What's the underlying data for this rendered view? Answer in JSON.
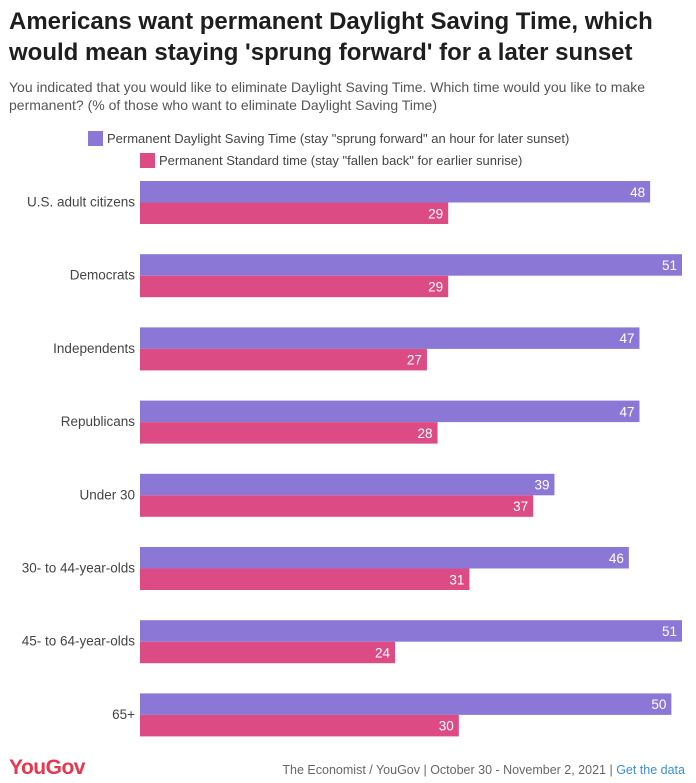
{
  "header": {
    "title": "Americans want permanent Daylight Saving Time, which would mean staying 'sprung forward' for a later sunset",
    "subtitle": "You indicated that you would like to eliminate Daylight Saving Time. Which time would you like to make permanent? (% of those who want to eliminate Daylight Saving Time)"
  },
  "footer": {
    "logo": "YouGov",
    "source": "The Economist / YouGov | October 30 - November 2, 2021 | ",
    "link": "Get the data"
  },
  "colors": {
    "dst": "#8b78d6",
    "standard": "#dc4b84"
  },
  "chart_data": {
    "type": "bar",
    "orientation": "horizontal",
    "categories": [
      "U.S. adult citizens",
      "Democrats",
      "Independents",
      "Republicans",
      "Under 30",
      "30- to 44-year-olds",
      "45- to 64-year-olds",
      "65+"
    ],
    "series": [
      {
        "name": "Permanent Daylight Saving Time (stay \"sprung forward\" an hour for later sunset)",
        "values": [
          48,
          51,
          47,
          47,
          39,
          46,
          51,
          50
        ]
      },
      {
        "name": "Permanent Standard time (stay \"fallen back\" for earlier sunrise)",
        "values": [
          29,
          29,
          27,
          28,
          37,
          31,
          24,
          30
        ]
      }
    ],
    "xlim": [
      0,
      51
    ],
    "grid": false,
    "legend": "top-left",
    "data_labels": true
  }
}
